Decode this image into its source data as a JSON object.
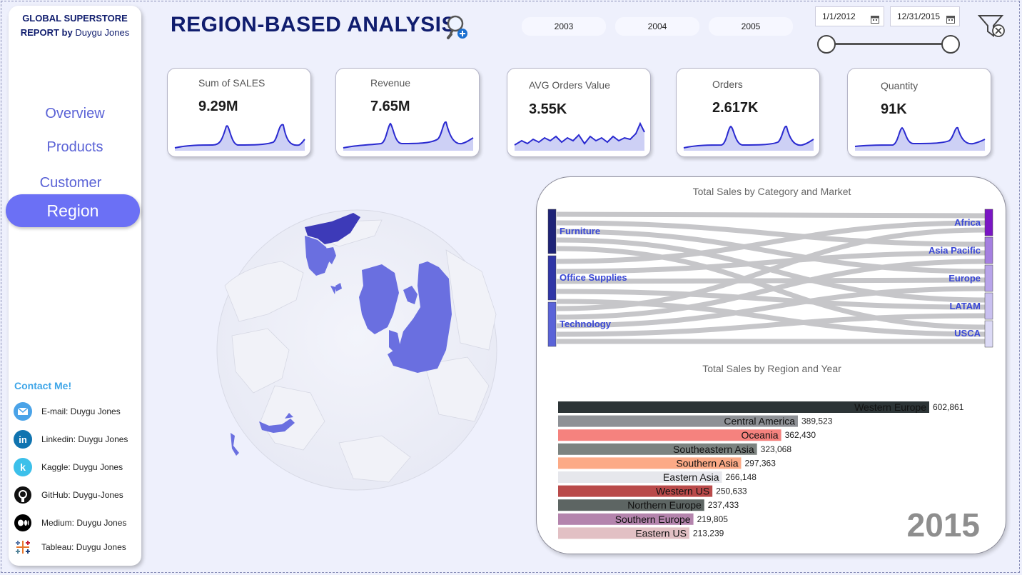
{
  "brand": {
    "line1": "GLOBAL SUPERSTORE",
    "line2a": "REPORT by",
    "line2b": "Duygu Jones"
  },
  "nav": {
    "overview": "Overview",
    "products": "Products",
    "customer": "Customer",
    "region": "Region"
  },
  "contact": {
    "title": "Contact Me!",
    "items": [
      {
        "label": "E-mail: Duygu Jones",
        "icon": "email-icon"
      },
      {
        "label": "Linkedin: Duygu Jones",
        "icon": "linkedin-icon"
      },
      {
        "label": "Kaggle: Duygu Jones",
        "icon": "kaggle-icon"
      },
      {
        "label": "GitHub: Duygu-Jones",
        "icon": "github-icon"
      },
      {
        "label": "Medium: Duygu Jones",
        "icon": "medium-icon"
      },
      {
        "label": "Tableau: Duygu Jones",
        "icon": "tableau-icon"
      }
    ]
  },
  "header": {
    "title": "REGION-BASED ANALYSIS",
    "years": [
      "2003",
      "2004",
      "2005"
    ],
    "date_start": "1/1/2012",
    "date_end": "12/31/2015"
  },
  "kpis": [
    {
      "label": "Sum of SALES",
      "value": "9.29M"
    },
    {
      "label": "Revenue",
      "value": "7.65M"
    },
    {
      "label": "AVG Orders Value",
      "value": "3.55K"
    },
    {
      "label": "Orders",
      "value": "2.617K"
    },
    {
      "label": "Quantity",
      "value": "91K"
    }
  ],
  "colors": {
    "accent": "#6b70f5",
    "navy": "#101d6e",
    "map_fill": "#6a6fe0",
    "map_dark": "#3d3ab8"
  },
  "sankey": {
    "title": "Total Sales by Category and Market",
    "sources": [
      "Furniture",
      "Office Supplies",
      "Technology"
    ],
    "targets": [
      "Africa",
      "Asia Pacific",
      "Europe",
      "LATAM",
      "USCA"
    ]
  },
  "chart_data": {
    "type": "bar",
    "title": "Total Sales by Region and Year",
    "year": "2015",
    "categories": [
      "Western Europe",
      "Central America",
      "Oceania",
      "Southeastern Asia",
      "Southern Asia",
      "Eastern Asia",
      "Western US",
      "Northern Europe",
      "Southern Europe",
      "Eastern US"
    ],
    "values": [
      602861,
      389523,
      362430,
      323068,
      297363,
      266148,
      250633,
      237433,
      219805,
      213239
    ],
    "value_labels": [
      "602,861",
      "389,523",
      "362,430",
      "323,068",
      "297,363",
      "266,148",
      "250,633",
      "237,433",
      "219,805",
      "213,239"
    ],
    "colors": [
      "#2c3436",
      "#8e9196",
      "#f5827e",
      "#7c8380",
      "#fcaa86",
      "#e6e7ec",
      "#b94a4a",
      "#5d6563",
      "#b484ad",
      "#e2c0c4"
    ]
  }
}
